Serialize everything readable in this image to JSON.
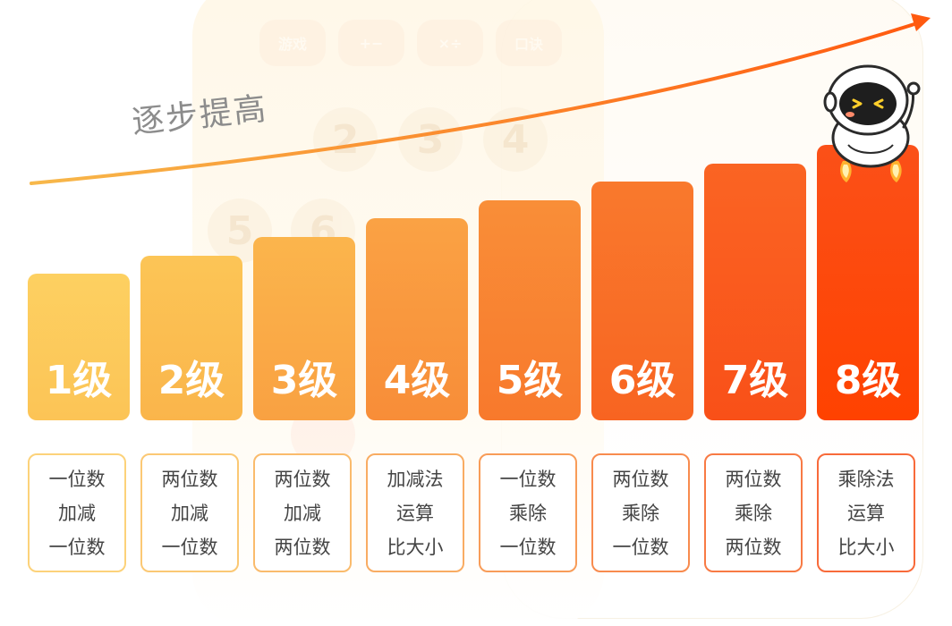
{
  "headline": "逐步提高",
  "bg_keys": [
    "游戏",
    "+−",
    "×÷",
    "口诀"
  ],
  "bg_numbers": [
    "2",
    "3",
    "4",
    "5",
    "6"
  ],
  "bg_ok": "OK",
  "levels": [
    {
      "label": "1级",
      "lines": [
        "一位数",
        "加减",
        "一位数"
      ]
    },
    {
      "label": "2级",
      "lines": [
        "两位数",
        "加减",
        "一位数"
      ]
    },
    {
      "label": "3级",
      "lines": [
        "两位数",
        "加减",
        "两位数"
      ]
    },
    {
      "label": "4级",
      "lines": [
        "加减法",
        "运算",
        "比大小"
      ]
    },
    {
      "label": "5级",
      "lines": [
        "一位数",
        "乘除",
        "一位数"
      ]
    },
    {
      "label": "6级",
      "lines": [
        "两位数",
        "乘除",
        "一位数"
      ]
    },
    {
      "label": "7级",
      "lines": [
        "两位数",
        "乘除",
        "两位数"
      ]
    },
    {
      "label": "8级",
      "lines": [
        "乘除法",
        "运算",
        "比大小"
      ]
    }
  ],
  "colors": {
    "bar_start": "#fdc95f",
    "bar_end": "#ff4a00",
    "arrow": "#ff6a1a",
    "headline": "#8c8c8c"
  }
}
